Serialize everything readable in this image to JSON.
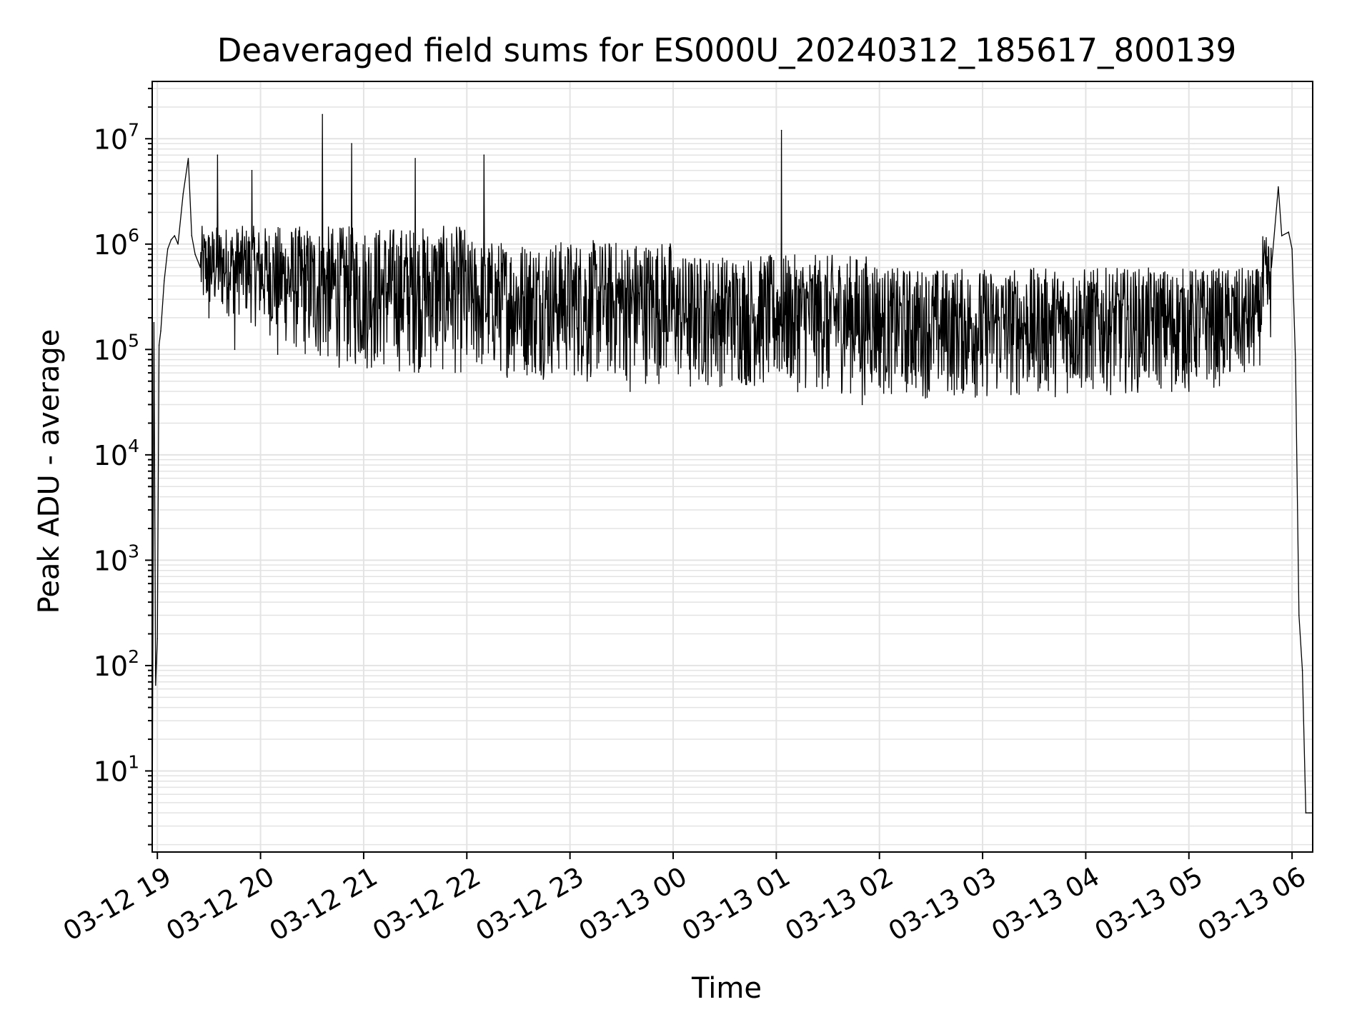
{
  "chart_data": {
    "type": "line",
    "title": "Deaveraged field sums for ES000U_20240312_185617_800139",
    "xlabel": "Time",
    "ylabel": "Peak ADU - average",
    "yscale": "log",
    "ylim": [
      1.7,
      35000000
    ],
    "xlim": [
      "2024-03-12 18:57",
      "2024-03-13 06:12"
    ],
    "grid": true,
    "line_color": "#000000",
    "x_tick_labels": [
      "03-12 19",
      "03-12 20",
      "03-12 21",
      "03-12 22",
      "03-12 23",
      "03-13 00",
      "03-13 01",
      "03-13 02",
      "03-13 03",
      "03-13 04",
      "03-13 05",
      "03-13 06"
    ],
    "y_tick_labels": [
      {
        "base": "10",
        "exp": "1"
      },
      {
        "base": "10",
        "exp": "2"
      },
      {
        "base": "10",
        "exp": "3"
      },
      {
        "base": "10",
        "exp": "4"
      },
      {
        "base": "10",
        "exp": "5"
      },
      {
        "base": "10",
        "exp": "6"
      },
      {
        "base": "10",
        "exp": "7"
      }
    ],
    "series": [
      {
        "x": [
          "2024-03-12 18:57",
          "2024-03-12 18:58",
          "2024-03-12 18:59",
          "2024-03-12 19:00",
          "2024-03-12 19:01",
          "2024-03-12 19:02",
          "2024-03-12 19:04",
          "2024-03-12 19:06",
          "2024-03-12 19:08",
          "2024-03-12 19:10",
          "2024-03-12 19:12",
          "2024-03-12 19:15",
          "2024-03-12 19:18",
          "2024-03-12 19:20",
          "2024-03-12 19:22",
          "2024-03-12 19:25",
          "2024-03-12 19:30",
          "2024-03-12 19:35",
          "2024-03-12 19:45",
          "2024-03-12 19:55",
          "2024-03-12 20:10",
          "2024-03-12 20:36",
          "2024-03-12 20:40",
          "2024-03-12 20:53",
          "2024-03-12 21:00",
          "2024-03-12 21:30",
          "2024-03-12 22:00",
          "2024-03-12 22:10",
          "2024-03-12 22:15",
          "2024-03-12 22:40",
          "2024-03-12 23:10",
          "2024-03-12 23:35",
          "2024-03-13 00:10",
          "2024-03-13 00:45",
          "2024-03-13 01:03",
          "2024-03-13 01:10",
          "2024-03-13 01:30",
          "2024-03-13 01:50",
          "2024-03-13 02:15",
          "2024-03-13 02:40",
          "2024-03-13 03:00",
          "2024-03-13 03:30",
          "2024-03-13 04:00",
          "2024-03-13 04:30",
          "2024-03-13 04:50",
          "2024-03-13 05:00",
          "2024-03-13 05:20",
          "2024-03-13 05:30",
          "2024-03-13 05:40",
          "2024-03-13 05:48",
          "2024-03-13 05:52",
          "2024-03-13 05:54",
          "2024-03-13 05:58",
          "2024-03-13 06:00",
          "2024-03-13 06:02",
          "2024-03-13 06:04",
          "2024-03-13 06:06",
          "2024-03-13 06:08",
          "2024-03-13 06:10",
          "2024-03-13 06:12"
        ],
        "y": [
          2.1,
          180000,
          65,
          180,
          110000,
          150000,
          450000,
          900000,
          1100000,
          1200000,
          1000000,
          3000000,
          6500000,
          1200000,
          800000,
          600000,
          200000,
          7000000,
          100000,
          5000000,
          90000,
          17000000,
          150000,
          9000000,
          100000,
          6500000,
          90000,
          7000000,
          120000,
          60000,
          50000,
          40000,
          45000,
          50000,
          12000000,
          60000,
          45000,
          30000,
          50000,
          60000,
          45000,
          55000,
          50000,
          45000,
          40000,
          40000,
          60000,
          100000,
          250000,
          600000,
          3500000,
          1200000,
          1300000,
          900000,
          80000,
          300,
          90,
          4,
          4,
          4
        ]
      }
    ]
  }
}
